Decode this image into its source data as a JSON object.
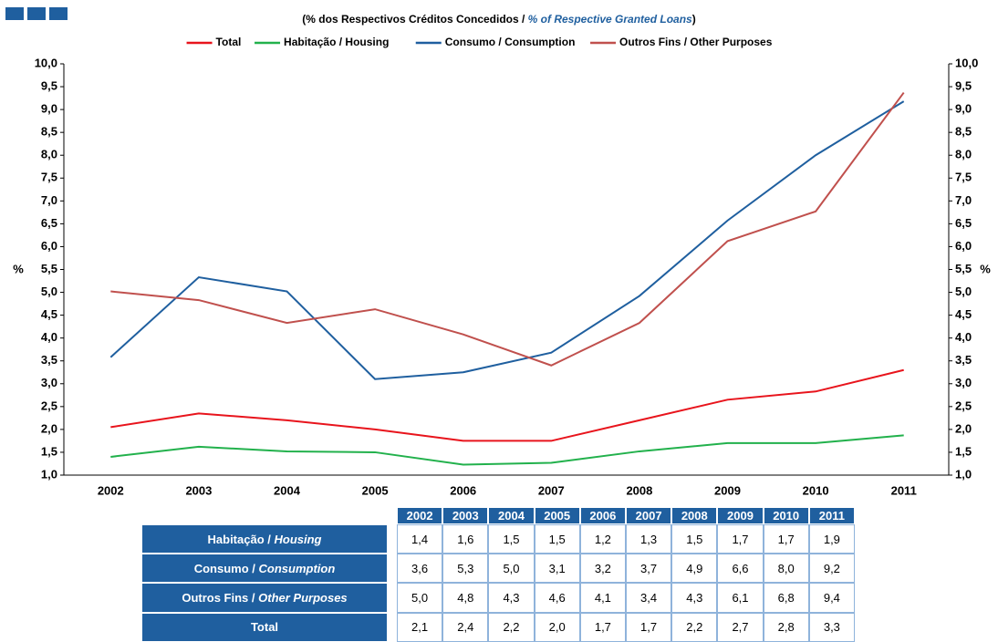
{
  "chart_data": {
    "type": "line",
    "subtitle": [
      "(% dos Respectivos  Créditos Concedidos / ",
      "% of Respective Granted Loans",
      ")"
    ],
    "ylabel": "%",
    "y2label": "%",
    "categories": [
      "2002",
      "2003",
      "2004",
      "2005",
      "2006",
      "2007",
      "2008",
      "2009",
      "2010",
      "2011"
    ],
    "series": [
      {
        "name": "Total",
        "color": "#e8141c",
        "values": [
          2.05,
          2.35,
          2.2,
          2.0,
          1.75,
          1.75,
          2.2,
          2.65,
          2.83,
          3.3
        ]
      },
      {
        "name": "Habitação / Housing",
        "color": "#22b14c",
        "values": [
          1.4,
          1.62,
          1.52,
          1.5,
          1.23,
          1.27,
          1.52,
          1.7,
          1.7,
          1.87
        ]
      },
      {
        "name": "Consumo / Consumption",
        "color": "#1f5f9f",
        "values": [
          3.58,
          5.33,
          5.02,
          3.1,
          3.25,
          3.68,
          4.92,
          6.57,
          8.0,
          9.18
        ]
      },
      {
        "name": "Outros Fins / Other Purposes",
        "color": "#c0504d",
        "values": [
          5.02,
          4.83,
          4.33,
          4.63,
          4.08,
          3.4,
          4.33,
          6.12,
          6.77,
          9.37
        ]
      }
    ],
    "ylim": [
      1,
      10
    ],
    "y2lim": [
      1,
      10
    ],
    "yticks": [
      {
        "value": 1,
        "label": "1,0"
      },
      {
        "value": 1.5,
        "label": "1,5"
      },
      {
        "value": 2,
        "label": "2,0"
      },
      {
        "value": 2.5,
        "label": "2,5"
      },
      {
        "value": 3,
        "label": "3,0"
      },
      {
        "value": 3.5,
        "label": "3,5"
      },
      {
        "value": 4,
        "label": "4,0"
      },
      {
        "value": 4.5,
        "label": "4,5"
      },
      {
        "value": 5,
        "label": "5,0"
      },
      {
        "value": 5.5,
        "label": "5,5"
      },
      {
        "value": 6,
        "label": "6,0"
      },
      {
        "value": 6.5,
        "label": "6,5"
      },
      {
        "value": 7,
        "label": "7,0"
      },
      {
        "value": 7.5,
        "label": "7,5"
      },
      {
        "value": 8,
        "label": "8,0"
      },
      {
        "value": 8.5,
        "label": "8,5"
      },
      {
        "value": 9,
        "label": "9,0"
      },
      {
        "value": 9.5,
        "label": "9,5"
      },
      {
        "value": 10,
        "label": "10,0"
      }
    ],
    "y2ticks": [
      {
        "value": 1,
        "label": "1,0"
      },
      {
        "value": 1.5,
        "label": "1,5"
      },
      {
        "value": 2,
        "label": "2,0"
      },
      {
        "value": 2.5,
        "label": "2,5"
      },
      {
        "value": 3,
        "label": "3,0"
      },
      {
        "value": 3.5,
        "label": "3,5"
      },
      {
        "value": 4,
        "label": "4,0"
      },
      {
        "value": 4.5,
        "label": "4,5"
      },
      {
        "value": 5,
        "label": "5,0"
      },
      {
        "value": 5.5,
        "label": "5,5"
      },
      {
        "value": 6,
        "label": "6,0"
      },
      {
        "value": 6.5,
        "label": "6,5"
      },
      {
        "value": 7,
        "label": "7,0"
      },
      {
        "value": 7.5,
        "label": "7,5"
      },
      {
        "value": 8,
        "label": "8,0"
      },
      {
        "value": 8.5,
        "label": "8,5"
      },
      {
        "value": 9,
        "label": "9,0"
      },
      {
        "value": 9.5,
        "label": "9,5"
      },
      {
        "value": 10,
        "label": "10,0"
      }
    ],
    "grid": false,
    "legend": "top"
  },
  "table": {
    "columns": [
      "2002",
      "2003",
      "2004",
      "2005",
      "2006",
      "2007",
      "2008",
      "2009",
      "2010",
      "2011"
    ],
    "rows": [
      {
        "label": [
          "Habitação / ",
          "Housing"
        ],
        "values": [
          "1,4",
          "1,6",
          "1,5",
          "1,5",
          "1,2",
          "1,3",
          "1,5",
          "1,7",
          "1,7",
          "1,9"
        ]
      },
      {
        "label": [
          "Consumo / ",
          "Consumption"
        ],
        "values": [
          "3,6",
          "5,3",
          "5,0",
          "3,1",
          "3,2",
          "3,7",
          "4,9",
          "6,6",
          "8,0",
          "9,2"
        ]
      },
      {
        "label": [
          "Outros Fins / ",
          "Other Purposes"
        ],
        "values": [
          "5,0",
          "4,8",
          "4,3",
          "4,6",
          "4,1",
          "3,4",
          "4,3",
          "6,1",
          "6,8",
          "9,4"
        ]
      },
      {
        "label": [
          "Total"
        ],
        "values": [
          "2,1",
          "2,4",
          "2,2",
          "2,0",
          "1,7",
          "1,7",
          "2,2",
          "2,7",
          "2,8",
          "3,3"
        ]
      }
    ]
  }
}
